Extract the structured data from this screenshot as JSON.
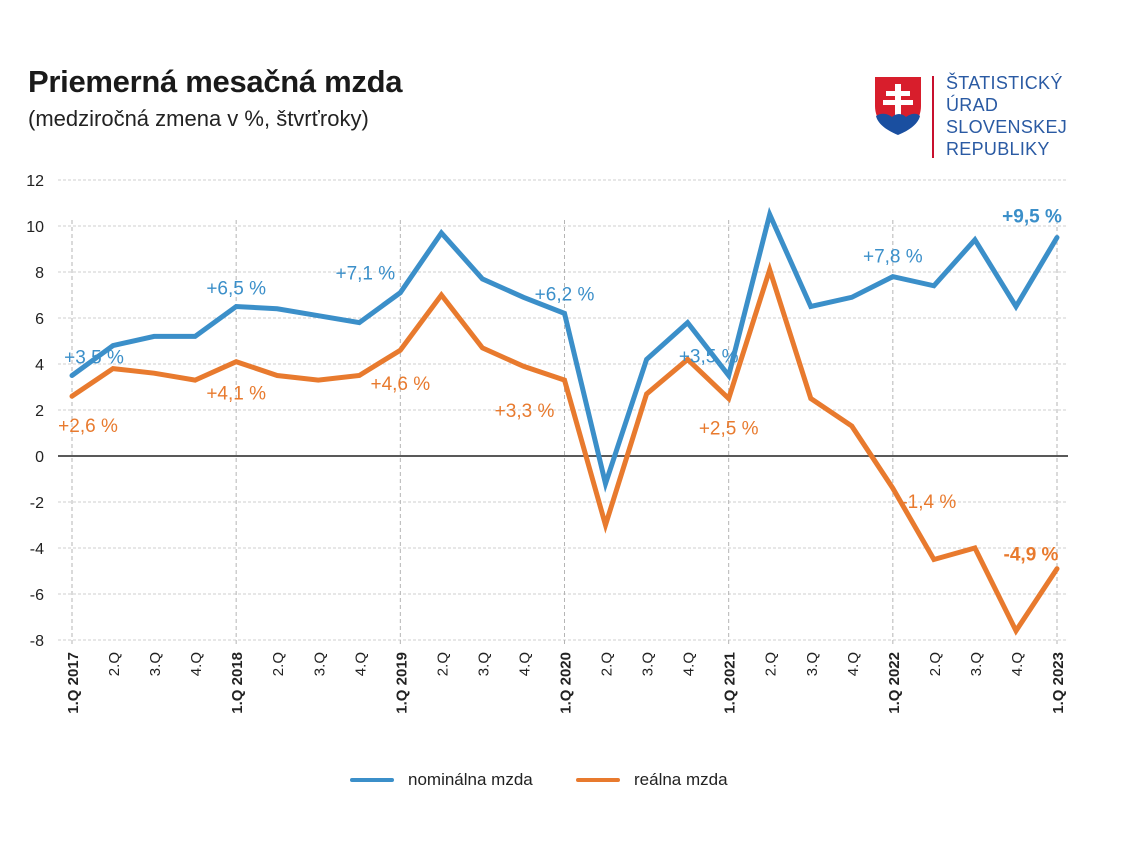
{
  "header": {
    "title": "Priemerná mesačná mzda",
    "subtitle": "(medziročná zmena v %, štvrťroky)"
  },
  "logo": {
    "lines": [
      "ŠTATISTICKÝ",
      "ÚRAD",
      "SLOVENSKEJ",
      "REPUBLIKY"
    ],
    "icon": "slovak-coat-of-arms-icon",
    "text_color": "#2a5aa3"
  },
  "chart_data": {
    "type": "line",
    "categories": [
      "1.Q 2017",
      "2.Q",
      "3.Q",
      "4.Q",
      "1.Q 2018",
      "2.Q",
      "3.Q",
      "4.Q",
      "1.Q 2019",
      "2.Q",
      "3.Q",
      "4.Q",
      "1.Q 2020",
      "2.Q",
      "3.Q",
      "4.Q",
      "1.Q 2021",
      "2.Q",
      "3.Q",
      "4.Q",
      "1.Q 2022",
      "2.Q",
      "3.Q",
      "4.Q",
      "1.Q 2023"
    ],
    "bold_categories": [
      0,
      4,
      8,
      12,
      16,
      20,
      24
    ],
    "ylim": [
      -8,
      12
    ],
    "yticks": [
      12,
      10,
      8,
      6,
      4,
      2,
      0,
      -2,
      -4,
      -6,
      -8
    ],
    "grid": true,
    "series": [
      {
        "name": "nominálna mzda",
        "color": "#3b8fc9",
        "values": [
          3.5,
          4.8,
          5.2,
          5.2,
          6.5,
          6.4,
          6.1,
          5.8,
          7.1,
          9.7,
          7.7,
          6.9,
          6.2,
          -1.2,
          4.2,
          5.8,
          3.5,
          10.5,
          6.5,
          6.9,
          7.8,
          7.4,
          9.4,
          6.5,
          9.5
        ]
      },
      {
        "name": "reálna mzda",
        "color": "#e87a2e",
        "values": [
          2.6,
          3.8,
          3.6,
          3.3,
          4.1,
          3.5,
          3.3,
          3.5,
          4.6,
          7.0,
          4.7,
          3.9,
          3.3,
          -3.0,
          2.7,
          4.2,
          2.5,
          8.1,
          2.5,
          1.3,
          -1.4,
          -4.5,
          -4.0,
          -7.6,
          -4.9
        ]
      }
    ],
    "annotations": [
      {
        "series": 0,
        "index": 0,
        "text": "+3,5 %",
        "bold": false
      },
      {
        "series": 0,
        "index": 4,
        "text": "+6,5 %",
        "bold": false
      },
      {
        "series": 0,
        "index": 8,
        "text": "+7,1 %",
        "bold": false
      },
      {
        "series": 0,
        "index": 12,
        "text": "+6,2 %",
        "bold": false
      },
      {
        "series": 0,
        "index": 16,
        "text": "+3,5 %",
        "bold": false
      },
      {
        "series": 0,
        "index": 20,
        "text": "+7,8 %",
        "bold": false
      },
      {
        "series": 0,
        "index": 24,
        "text": "+9,5 %",
        "bold": true
      },
      {
        "series": 1,
        "index": 0,
        "text": "+2,6 %",
        "bold": false
      },
      {
        "series": 1,
        "index": 4,
        "text": "+4,1 %",
        "bold": false
      },
      {
        "series": 1,
        "index": 8,
        "text": "+4,6 %",
        "bold": false
      },
      {
        "series": 1,
        "index": 12,
        "text": "+3,3 %",
        "bold": false
      },
      {
        "series": 1,
        "index": 16,
        "text": "+2,5 %",
        "bold": false
      },
      {
        "series": 1,
        "index": 20,
        "text": "-1,4 %",
        "bold": false
      },
      {
        "series": 1,
        "index": 24,
        "text": "-4,9 %",
        "bold": true
      }
    ]
  },
  "legend": [
    {
      "label": "nominálna mzda",
      "color": "#3b8fc9"
    },
    {
      "label": "reálna mzda",
      "color": "#e87a2e"
    }
  ]
}
